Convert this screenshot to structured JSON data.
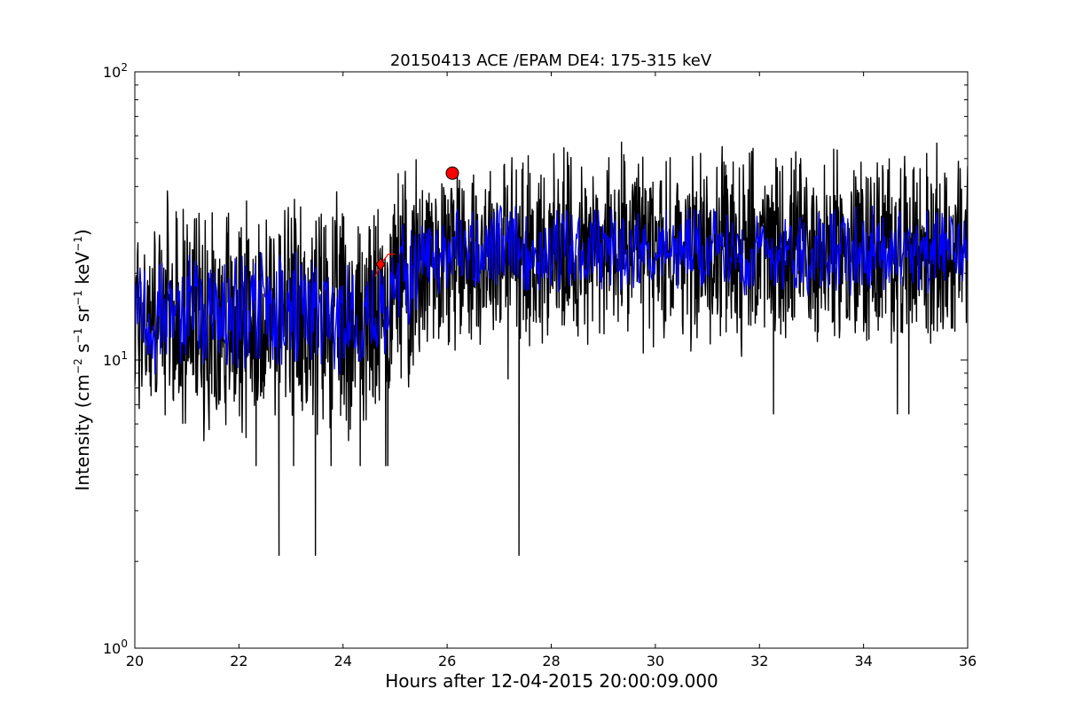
{
  "chart_data": {
    "type": "line",
    "title": "20150413 ACE /EPAM DE4: 175-315 keV",
    "xlabel": "Hours after 12-04-2015 20:00:09.000",
    "ylabel": {
      "prefix": "Intensity (cm",
      "exp1": "−2",
      "mid1": " s",
      "exp2": "−1",
      "mid2": " sr",
      "exp3": "−1",
      "mid3": " keV",
      "exp4": "−1",
      "suffix": ")"
    },
    "xlim": [
      20,
      36
    ],
    "ylim": [
      1,
      100
    ],
    "yscale": "log",
    "x_ticks": [
      "20",
      "22",
      "24",
      "26",
      "28",
      "30",
      "32",
      "34",
      "36"
    ],
    "y_ticks": [
      {
        "base": "10",
        "exp": "0"
      },
      {
        "base": "10",
        "exp": "1"
      },
      {
        "base": "10",
        "exp": "2"
      }
    ],
    "grid": false,
    "legend": "none",
    "series": [
      {
        "style": "raw-black-line",
        "color": "#000000",
        "segments": [
          {
            "x": [
              20.0,
              24.9
            ],
            "baseline": 14.0,
            "noise": 0.32,
            "samples": 580
          },
          {
            "x": [
              24.9,
              25.5
            ],
            "baseline": 20.0,
            "noise": 0.3,
            "samples": 75
          },
          {
            "x": [
              25.5,
              36.0
            ],
            "baseline": 24.0,
            "noise": 0.27,
            "samples": 1240
          }
        ],
        "spikes": [
          {
            "x": 22.33,
            "y": 4.3
          },
          {
            "x": 22.77,
            "y": 2.1
          },
          {
            "x": 23.05,
            "y": 4.3
          },
          {
            "x": 23.47,
            "y": 2.1
          },
          {
            "x": 23.77,
            "y": 4.3
          },
          {
            "x": 24.33,
            "y": 4.3
          },
          {
            "x": 24.82,
            "y": 4.3
          },
          {
            "x": 24.86,
            "y": 4.3
          },
          {
            "x": 27.38,
            "y": 2.1
          },
          {
            "x": 27.17,
            "y": 8.6
          },
          {
            "x": 29.35,
            "y": 57.0
          },
          {
            "x": 28.05,
            "y": 52.0
          },
          {
            "x": 36.0,
            "y": 47.0
          },
          {
            "x": 32.27,
            "y": 6.5
          },
          {
            "x": 34.65,
            "y": 6.5
          },
          {
            "x": 34.87,
            "y": 6.5
          }
        ]
      },
      {
        "style": "smoothed-blue-line",
        "color": "#0000ff",
        "segments": [
          {
            "x": [
              20.0,
              24.9
            ],
            "baseline": 14.5,
            "noise": 0.16,
            "samples": 290
          },
          {
            "x": [
              24.9,
              25.5
            ],
            "baseline": 20.0,
            "noise": 0.14,
            "samples": 38
          },
          {
            "x": [
              25.5,
              36.0
            ],
            "baseline": 24.0,
            "noise": 0.12,
            "samples": 620
          }
        ]
      }
    ],
    "markers": [
      {
        "shape": "circle",
        "x": 26.1,
        "y": 44.5,
        "color": "#ff0000"
      },
      {
        "shape": "diamond",
        "x": 24.72,
        "y": 21.5,
        "color": "#ff0000"
      }
    ],
    "marker_lines": [
      {
        "color": "#ff0000",
        "x": [
          24.62,
          24.72,
          24.87,
          25.0
        ],
        "y": [
          19.5,
          21.5,
          23.3,
          23.3
        ]
      }
    ]
  }
}
